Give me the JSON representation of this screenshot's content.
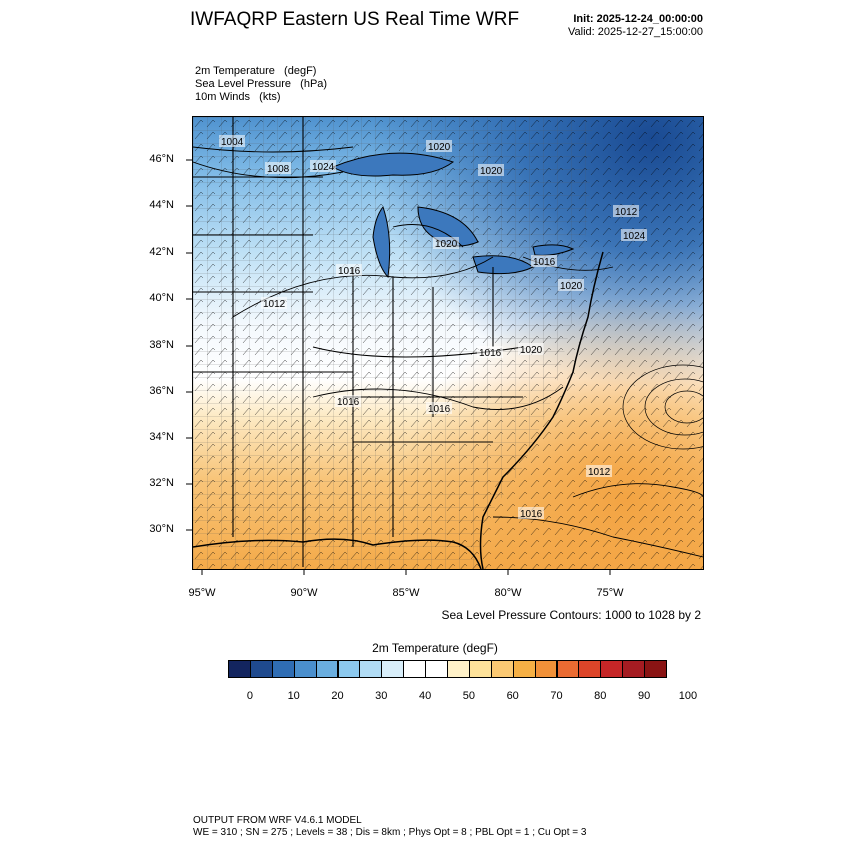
{
  "header": {
    "title": "IWFAQRP Eastern US Real Time WRF",
    "init": "Init: 2025-12-24_00:00:00",
    "valid": "Valid: 2025-12-27_15:00:00"
  },
  "fields": {
    "line1": "2m Temperature   (degF)",
    "line2": "Sea Level Pressure   (hPa)",
    "line3": "10m Winds   (kts)"
  },
  "map": {
    "lat_labels": [
      "46°N",
      "44°N",
      "42°N",
      "40°N",
      "38°N",
      "36°N",
      "34°N",
      "32°N",
      "30°N"
    ],
    "lon_labels": [
      "95°W",
      "90°W",
      "85°W",
      "80°W",
      "75°W"
    ],
    "pressure_labels": [
      "1004",
      "1008",
      "1012",
      "1020",
      "1020",
      "1024",
      "1020",
      "1016",
      "1016",
      "1020",
      "1024",
      "1012",
      "1016",
      "1016",
      "1020",
      "1016",
      "1012",
      "1016"
    ],
    "colors": {
      "cold": "#1d4f9a",
      "cool": "#8cc9ee",
      "neutral": "#ffffff",
      "warm": "#f6b95a",
      "ocean_warm": "#f3a443"
    }
  },
  "contour_note": "Sea Level Pressure Contours: 1000 to 1028 by 2",
  "colorbar": {
    "title": "2m Temperature  (degF)",
    "colors": [
      "#13255f",
      "#1f4a8e",
      "#2f6db4",
      "#4a8fcd",
      "#6aaedf",
      "#8cc9ee",
      "#b1dcf5",
      "#d8eefa",
      "#ffffff",
      "#ffffff",
      "#fff1c8",
      "#fee29a",
      "#fbc973",
      "#f6b045",
      "#f19139",
      "#ea6b32",
      "#dd4529",
      "#c52627",
      "#a51c22",
      "#8a1414"
    ],
    "labels": [
      "0",
      "10",
      "20",
      "30",
      "40",
      "50",
      "60",
      "70",
      "80",
      "90",
      "100"
    ]
  },
  "footer": {
    "line1": "OUTPUT FROM WRF V4.6.1 MODEL",
    "line2": "WE = 310 ; SN = 275 ; Levels = 38 ; Dis = 8km ; Phys Opt = 8 ; PBL Opt = 1 ; Cu Opt = 3"
  }
}
